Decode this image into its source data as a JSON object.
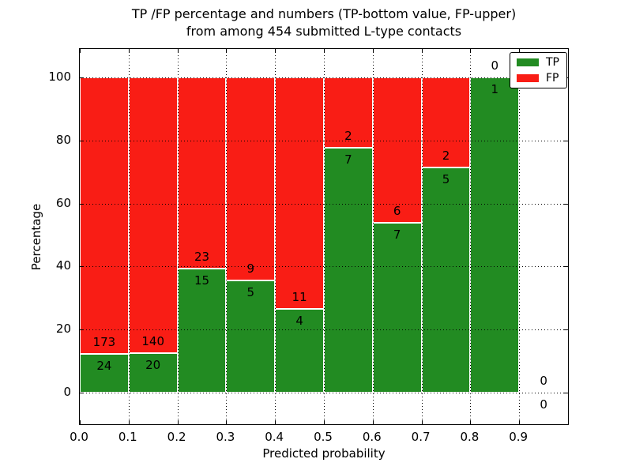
{
  "chart_data": {
    "type": "bar",
    "stacked": true,
    "title_line1": "TP /FP percentage and numbers (TP-bottom value, FP-upper)",
    "title_line2": "from among 454 submitted L-type contacts",
    "xlabel": "Predicted probability",
    "ylabel": "Percentage",
    "bin_edges": [
      0.0,
      0.1,
      0.2,
      0.3,
      0.4,
      0.5,
      0.6,
      0.7,
      0.8,
      0.9,
      1.0
    ],
    "series": [
      {
        "name": "TP",
        "color": "#228b22",
        "values": [
          24,
          20,
          15,
          5,
          4,
          7,
          7,
          5,
          1,
          0
        ]
      },
      {
        "name": "FP",
        "color": "#f91d15",
        "values": [
          173,
          140,
          23,
          9,
          11,
          2,
          6,
          2,
          0,
          0
        ]
      }
    ],
    "bar_unit": "percent of bin total (TP+FP)",
    "x_tick_labels": [
      "0.0",
      "0.1",
      "0.2",
      "0.3",
      "0.4",
      "0.5",
      "0.6",
      "0.7",
      "0.8",
      "0.9"
    ],
    "y_tick_values": [
      0,
      20,
      40,
      60,
      80,
      100
    ],
    "xlim": [
      0.0,
      1.0
    ],
    "ylim": [
      -10,
      109
    ],
    "grid": true,
    "grid_style": "dotted",
    "legend": {
      "position": "upper right",
      "entries": [
        {
          "label": "TP",
          "color": "#228b22"
        },
        {
          "label": "FP",
          "color": "#f91d15"
        }
      ]
    }
  }
}
